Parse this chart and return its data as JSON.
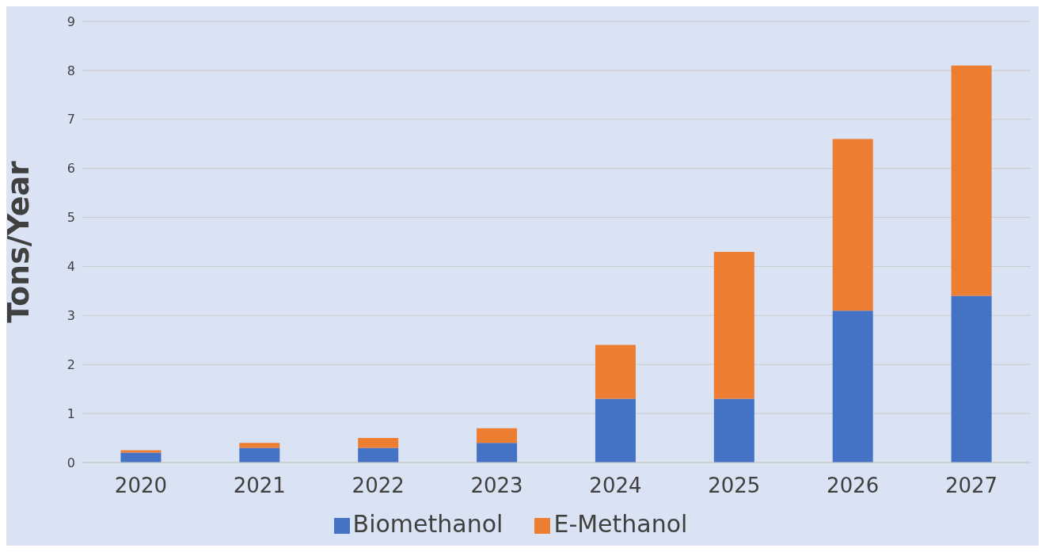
{
  "chart_data": {
    "type": "bar",
    "stacked": true,
    "ylabel": "Tons/Year",
    "categories": [
      "2020",
      "2021",
      "2022",
      "2023",
      "2024",
      "2025",
      "2026",
      "2027"
    ],
    "series": [
      {
        "name": "Biomethanol",
        "color": "#4472c4",
        "values": [
          0.2,
          0.3,
          0.3,
          0.4,
          1.3,
          1.3,
          3.1,
          3.4
        ]
      },
      {
        "name": "E-Methanol",
        "color": "#ed7d31",
        "values": [
          0.05,
          0.1,
          0.2,
          0.3,
          1.1,
          3.0,
          3.5,
          4.7
        ]
      }
    ],
    "ylim": [
      0,
      9
    ],
    "yticks": [
      0,
      1,
      2,
      3,
      4,
      5,
      6,
      7,
      8,
      9
    ],
    "grid": "y",
    "legend": "bottom"
  }
}
